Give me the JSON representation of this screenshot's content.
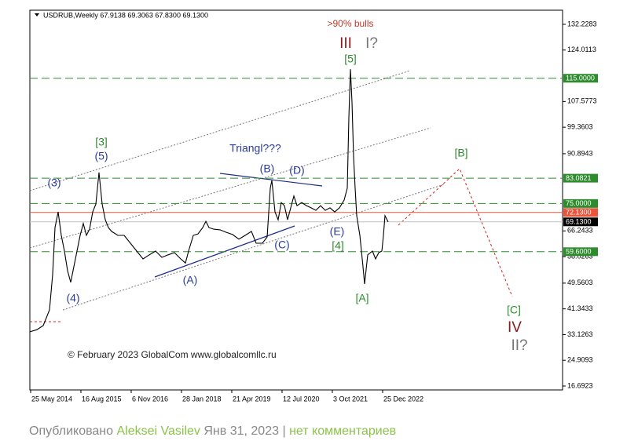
{
  "chart_data": {
    "type": "line",
    "header": "USDRUB,Weekly  67.9138 69.3063 67.8300 69.1300",
    "x": [
      "2014-05-18",
      "2014-07-20",
      "2014-09-14",
      "2014-11-09",
      "2014-12-07",
      "2014-12-28",
      "2015-01-25",
      "2015-02-22",
      "2015-03-22",
      "2015-04-19",
      "2015-05-17",
      "2015-06-14",
      "2015-07-12",
      "2015-08-09",
      "2015-09-06",
      "2015-10-04",
      "2015-11-01",
      "2015-11-29",
      "2015-12-27",
      "2016-01-24",
      "2016-02-21",
      "2016-03-20",
      "2016-04-17",
      "2016-05-15",
      "2016-07-10",
      "2016-09-04",
      "2016-10-30",
      "2016-12-25",
      "2017-02-19",
      "2017-04-16",
      "2017-06-11",
      "2017-08-06",
      "2017-10-01",
      "2017-11-26",
      "2018-01-21",
      "2018-03-04",
      "2018-04-01",
      "2018-05-13",
      "2018-06-24",
      "2018-08-05",
      "2018-09-02",
      "2018-09-30",
      "2018-11-11",
      "2019-01-06",
      "2019-03-03",
      "2019-04-28",
      "2019-06-23",
      "2019-08-18",
      "2019-10-13",
      "2019-11-24",
      "2020-01-19",
      "2020-03-01",
      "2020-03-29",
      "2020-04-12",
      "2020-05-10",
      "2020-06-07",
      "2020-07-05",
      "2020-08-02",
      "2020-08-30",
      "2020-09-27",
      "2020-10-25",
      "2020-11-22",
      "2021-01-03",
      "2021-02-14",
      "2021-03-28",
      "2021-05-09",
      "2021-06-20",
      "2021-08-01",
      "2021-09-12",
      "2021-10-24",
      "2021-12-05",
      "2022-01-16",
      "2022-02-13",
      "2022-02-27",
      "2022-03-13",
      "2022-03-27",
      "2022-04-10",
      "2022-04-24",
      "2022-05-08",
      "2022-06-05",
      "2022-07-03",
      "2022-07-17",
      "2022-08-14",
      "2022-09-25",
      "2022-10-23",
      "2022-11-20",
      "2022-12-18",
      "2023-01-01",
      "2023-01-15",
      "2023-02-12"
    ],
    "values": [
      34.0,
      34.7,
      36.0,
      41.0,
      52.3,
      67.3,
      72.3,
      64.8,
      59.8,
      53.5,
      49.8,
      54.8,
      59.8,
      64.8,
      68.6,
      64.8,
      66.8,
      72.3,
      74.8,
      84.9,
      74.8,
      69.8,
      67.3,
      66.1,
      64.8,
      64.8,
      62.3,
      59.8,
      57.3,
      58.6,
      59.8,
      57.8,
      58.6,
      59.3,
      57.3,
      56.0,
      59.8,
      64.8,
      65.3,
      67.3,
      69.3,
      67.3,
      66.8,
      66.6,
      65.8,
      65.1,
      63.6,
      64.8,
      66.1,
      62.3,
      62.3,
      64.3,
      79.9,
      82.4,
      72.3,
      69.8,
      75.3,
      74.3,
      69.8,
      73.6,
      77.4,
      74.3,
      75.3,
      74.3,
      73.6,
      72.8,
      74.3,
      72.8,
      73.6,
      72.3,
      73.6,
      76.1,
      79.9,
      102.4,
      117.9,
      107.4,
      89.9,
      79.9,
      71.1,
      64.8,
      54.8,
      49.3,
      58.6,
      59.8,
      57.3,
      59.3,
      59.8,
      64.8,
      71.1,
      69.1
    ],
    "color": "#000000",
    "xlim": [
      "2014-05-18",
      "2027-05-16"
    ],
    "xticks": [
      {
        "value": "2014-05-25",
        "label": "25 May 2014"
      },
      {
        "value": "2015-08-16",
        "label": "16 Aug 2015"
      },
      {
        "value": "2016-11-06",
        "label": "6 Nov 2016"
      },
      {
        "value": "2018-01-28",
        "label": "28 Jan 2018"
      },
      {
        "value": "2019-04-21",
        "label": "21 Apr 2019"
      },
      {
        "value": "2020-07-12",
        "label": "12 Jul 2020"
      },
      {
        "value": "2021-10-03",
        "label": "3 Oct 2021"
      },
      {
        "value": "2022-12-25",
        "label": "25 Dec 2022"
      }
    ],
    "ylim": [
      15.44,
      136.74
    ],
    "yticks": [
      132.2283,
      124.0113,
      107.5773,
      99.3603,
      90.8943,
      66.2433,
      58.0263,
      49.5603,
      41.3433,
      33.1263,
      24.9093,
      16.6923
    ],
    "grid": false,
    "levels": [
      {
        "value": 115,
        "label": "115.0000",
        "color": "#2e8b2e",
        "dashed": true
      },
      {
        "value": 83.0821,
        "label": "83.0821",
        "color": "#2e8b2e",
        "dashed": true
      },
      {
        "value": 75,
        "label": "75.0000",
        "color": "#2e8b2e",
        "dashed": true
      },
      {
        "value": 72.13,
        "label": "72.1300",
        "color": "#e8553a",
        "dashed": false
      },
      {
        "value": 69.13,
        "label": "69.1300",
        "color": "#c0c0c0",
        "dashed": false
      },
      {
        "value": 59.6,
        "label": "59.6000",
        "color": "#2e8b2e",
        "dashed": true
      }
    ],
    "annotations": [
      ">90% bulls",
      "III",
      "I?",
      "[5]",
      "[3]",
      "(5)",
      "(3)",
      "(4)",
      "Triangl???",
      "(B)",
      "(D)",
      "(A)",
      "(C)",
      "(E)",
      "[4]",
      "[A]",
      "[B]",
      "[C]",
      "IV",
      "II?"
    ],
    "copyright": "© February 2023 GlobalCom www.globalcomllc.ru"
  },
  "footer": {
    "prefix": "Опубликовано",
    "author": "Aleksei Vasilev",
    "date": "Янв 31, 2023",
    "separator": "|",
    "comments": "нет комментариев"
  }
}
